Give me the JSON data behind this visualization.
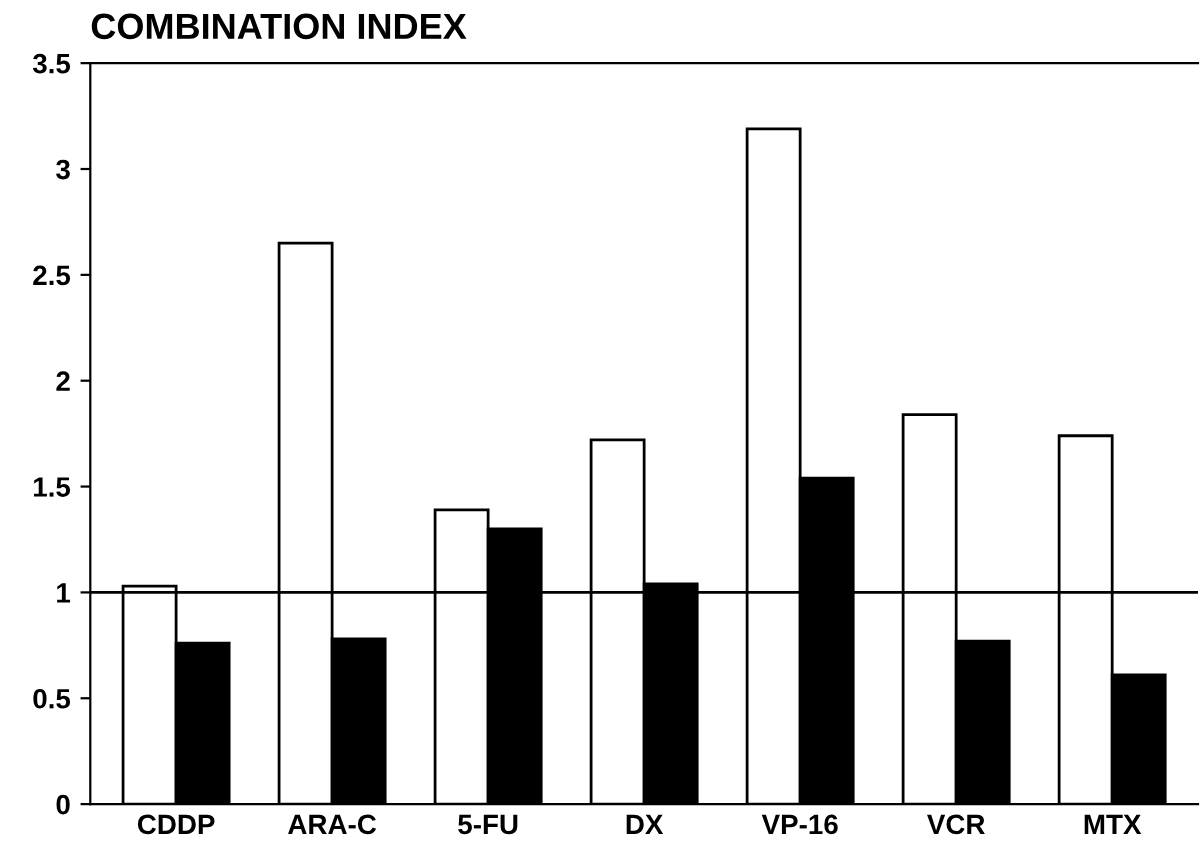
{
  "chart_data": {
    "type": "bar",
    "title": "COMBINATION INDEX",
    "categories": [
      "CDDP",
      "ARA-C",
      "5-FU",
      "DX",
      "VP-16",
      "VCR",
      "MTX"
    ],
    "series": [
      {
        "color": "#ffffff",
        "values": [
          1.03,
          2.65,
          1.39,
          1.72,
          3.19,
          1.84,
          1.74
        ]
      },
      {
        "color": "#000000",
        "values": [
          0.76,
          0.78,
          1.3,
          1.04,
          1.54,
          0.77,
          0.61
        ]
      }
    ],
    "ylim": [
      0,
      3.5
    ],
    "yticks": [
      0,
      0.5,
      1,
      1.5,
      2,
      2.5,
      3,
      3.5
    ],
    "grid": false,
    "legend": false,
    "ref_lines": [
      {
        "axis": "y",
        "value": 1,
        "color": "#000000",
        "line_style": "solid"
      }
    ]
  }
}
